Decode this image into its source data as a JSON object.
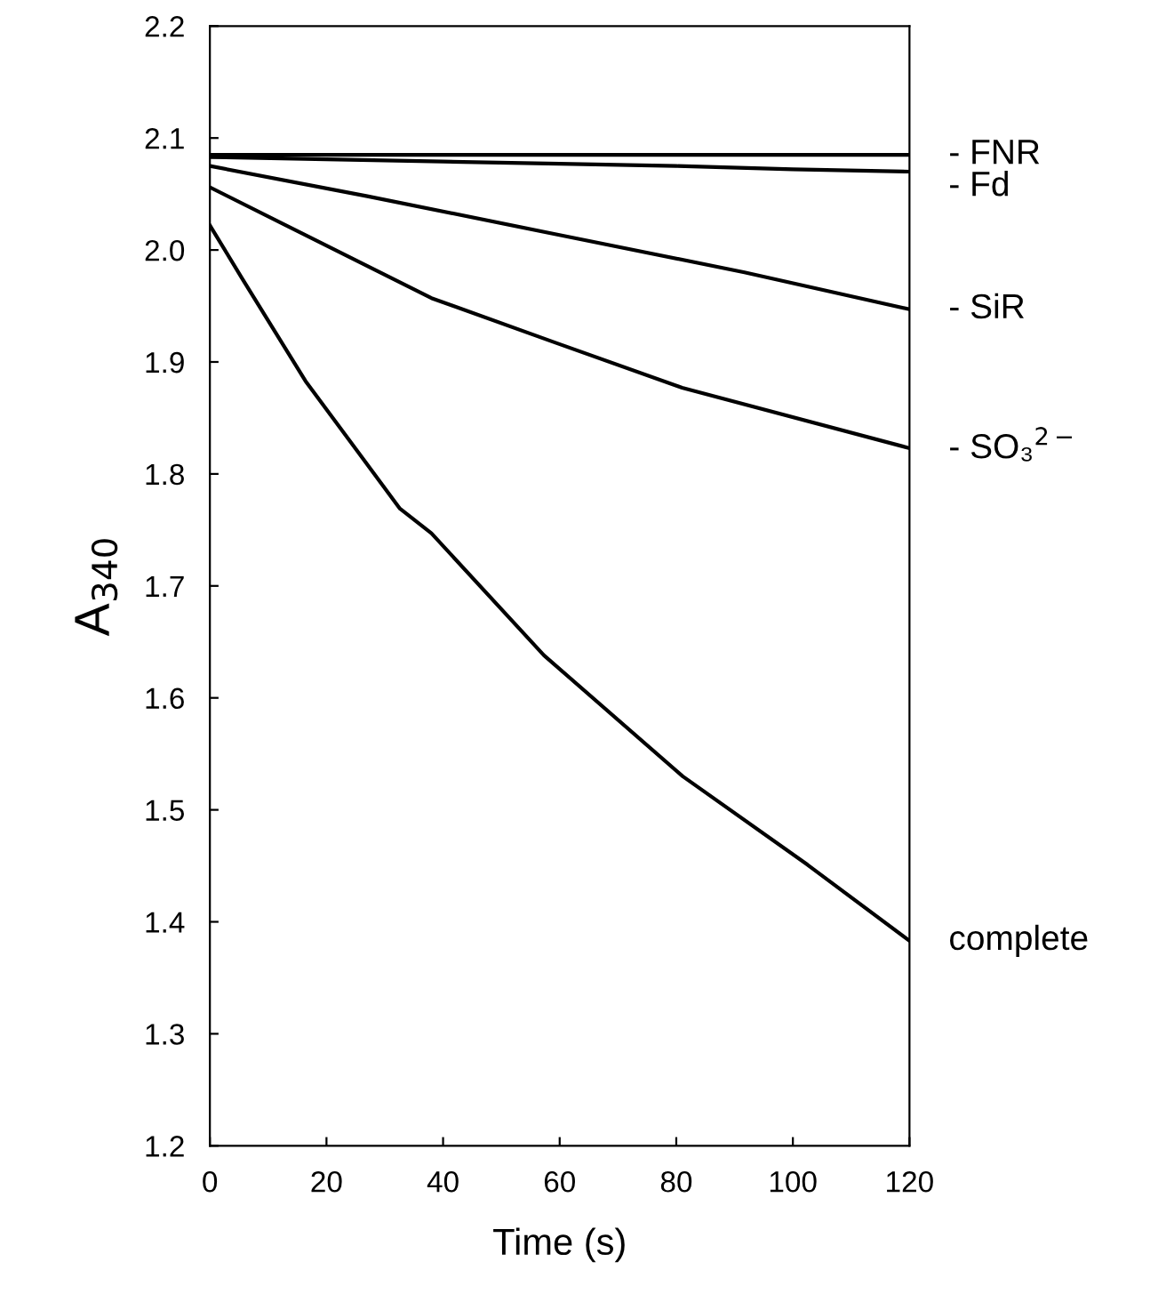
{
  "chart_data": {
    "type": "line",
    "xlabel": "Time (s)",
    "ylabel": "A$_{340}$",
    "xlim": [
      0,
      120
    ],
    "ylim": [
      1.2,
      2.2
    ],
    "xticks": [
      0,
      20,
      40,
      60,
      80,
      100,
      120
    ],
    "yticks": [
      1.2,
      1.3,
      1.4,
      1.5,
      1.6,
      1.7,
      1.8,
      1.9,
      {
        "value": 2.0,
        "label": "2.0"
      },
      2.1,
      2.2
    ],
    "grid": false,
    "legend": false,
    "marker": "none",
    "line_style": "solid",
    "series": [
      {
        "name": "- FNR",
        "color": "#000000",
        "x": [
          0,
          20,
          40,
          60,
          80,
          100,
          120
        ],
        "values": [
          2.085,
          2.085,
          2.085,
          2.085,
          2.085,
          2.085,
          2.085
        ]
      },
      {
        "name": "- Fd",
        "color": "#000000",
        "x": [
          0,
          20,
          40,
          60,
          80,
          100,
          120
        ],
        "values": [
          2.083,
          2.081,
          2.079,
          2.077,
          2.075,
          2.072,
          2.07
        ]
      },
      {
        "name": "- SiR",
        "color": "#000000",
        "x": [
          0,
          27,
          59.4,
          91.7,
          120
        ],
        "values": [
          2.075,
          2.048,
          2.014,
          1.98,
          1.947
        ]
      },
      {
        "name": "- SO₃$^{2−}$",
        "color": "#000000",
        "x": [
          0,
          38,
          59.4,
          81,
          120
        ],
        "values": [
          2.056,
          1.957,
          1.917,
          1.877,
          1.823
        ]
      },
      {
        "name": "complete",
        "color": "#000000",
        "x": [
          0,
          5.6,
          16.4,
          32.6,
          38,
          57.3,
          81.1,
          102.5,
          120
        ],
        "values": [
          2.022,
          1.974,
          1.883,
          1.769,
          1.747,
          1.638,
          1.53,
          1.451,
          1.383
        ]
      }
    ]
  }
}
